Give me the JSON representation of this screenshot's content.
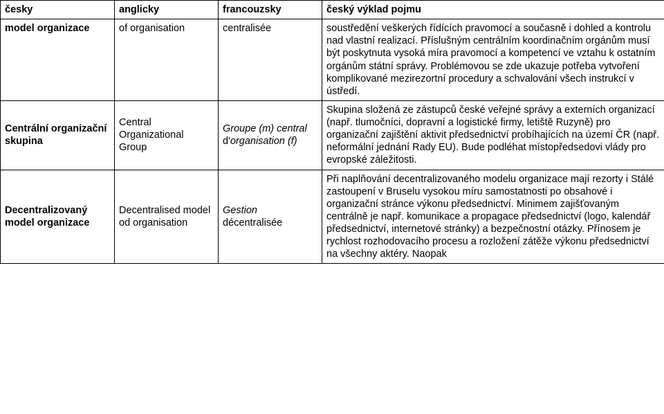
{
  "header": {
    "c1": "česky",
    "c2": "anglicky",
    "c3": "francouzsky",
    "c4": "český výklad pojmu"
  },
  "rows": [
    {
      "cz_term": "model organizace",
      "en": "of organisation",
      "fr_plain": "centralisée",
      "fr_italic": "",
      "def": "soustředění veškerých řídících pravomocí a současně i dohled a kontrolu nad vlastní realizací. Příslušným centrálním koordinačním orgánům musí být poskytnuta vysoká míra pravomocí a kompetencí ve vztahu k ostatním orgánům státní správy. Problémovou se zde ukazuje potřeba vytvoření komplikované mezirezortní procedury a schvalování všech instrukcí v ústředí."
    },
    {
      "cz_term": "Centrální organizační skupina",
      "en": "Central Organizational Group",
      "fr_italic_a": "Groupe (m) central",
      "fr_plain_mid": "d",
      "fr_italic_b": "organisation (f)",
      "def": "Skupina složená ze zástupců české veřejné správy a externích organizací (např. tlumočníci, dopravní a logistické firmy, letiště Ruzyně) pro organizační zajištění aktivit předsednictví probíhajících na území ČR (např. neformální jednání Rady EU). Bude podléhat místopředsedovi vlády pro evropské záležitosti."
    },
    {
      "cz_term": "Decentralizovaný model organizace",
      "en": "Decentralised model od organisation",
      "fr_italic_a": "Gestion",
      "fr_plain_mid": "décentralisée",
      "fr_italic_b": "",
      "def": "Při naplňování decentralizovaného modelu organizace mají rezorty i Stálé zastoupení v Bruselu vysokou míru samostatnosti po obsahové i organizační stránce výkonu předsednictví. Minimem zajišťovaným centrálně je např. komunikace a propagace předsednictví (logo, kalendář předsednictví, internetové stránky) a bezpečnostní otázky. Přínosem je rychlost rozhodovacího procesu a rozložení zátěže výkonu předsednictví na všechny aktéry. Naopak"
    }
  ]
}
